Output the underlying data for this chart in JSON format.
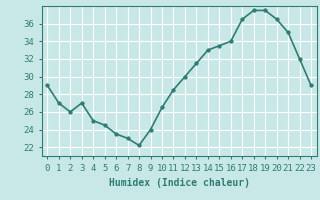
{
  "x": [
    0,
    1,
    2,
    3,
    4,
    5,
    6,
    7,
    8,
    9,
    10,
    11,
    12,
    13,
    14,
    15,
    16,
    17,
    18,
    19,
    20,
    21,
    22,
    23
  ],
  "y": [
    29,
    27,
    26,
    27,
    25,
    24.5,
    23.5,
    23,
    22.2,
    24,
    26.5,
    28.5,
    30,
    31.5,
    33,
    33.5,
    34,
    36.5,
    37.5,
    37.5,
    36.5,
    35,
    32,
    29
  ],
  "line_color": "#2e7d72",
  "marker_color": "#2e7d72",
  "bg_color": "#c8e8e8",
  "grid_color": "#b0d8d8",
  "xlabel": "Humidex (Indice chaleur)",
  "ylim": [
    21,
    38
  ],
  "xlim": [
    -0.5,
    23.5
  ],
  "yticks": [
    22,
    24,
    26,
    28,
    30,
    32,
    34,
    36
  ],
  "xticks": [
    0,
    1,
    2,
    3,
    4,
    5,
    6,
    7,
    8,
    9,
    10,
    11,
    12,
    13,
    14,
    15,
    16,
    17,
    18,
    19,
    20,
    21,
    22,
    23
  ],
  "xlabel_fontsize": 7,
  "tick_fontsize": 6.5,
  "linewidth": 1.2,
  "markersize": 2.5
}
